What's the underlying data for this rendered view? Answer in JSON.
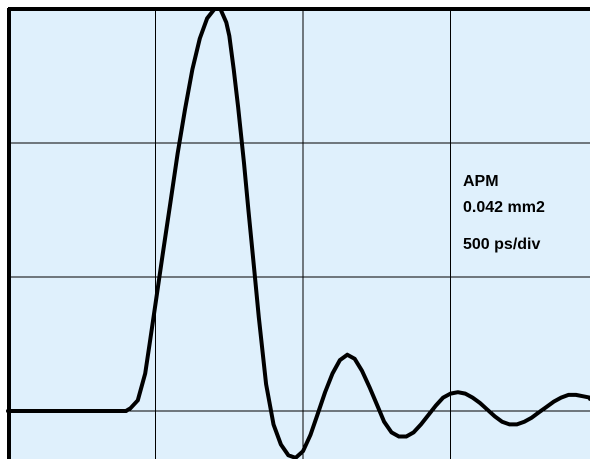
{
  "chart_data": {
    "type": "line",
    "title": "",
    "xlabel": "",
    "ylabel": "",
    "annotations": {
      "line1": "APM",
      "line2": "0.042 mm2",
      "line3": "500 ps/div"
    },
    "grid": true,
    "xlim": [
      0,
      4
    ],
    "ylim": [
      -0.25,
      3
    ],
    "x_unit_note": "divisions (500 ps/div)",
    "series": [
      {
        "x": [
          0.0,
          0.4,
          0.8,
          0.83,
          0.88,
          0.93,
          0.96,
          1.0,
          1.05,
          1.1,
          1.15,
          1.2,
          1.25,
          1.3,
          1.35,
          1.4,
          1.44,
          1.48,
          1.5,
          1.53,
          1.56,
          1.6,
          1.63,
          1.67,
          1.7,
          1.75,
          1.8,
          1.85,
          1.9,
          1.95,
          2.0,
          2.05,
          2.1,
          2.15,
          2.2,
          2.25,
          2.3,
          2.35,
          2.4,
          2.45,
          2.5,
          2.55,
          2.6,
          2.65,
          2.7,
          2.75,
          2.8,
          2.85,
          2.9,
          2.95,
          3.0,
          3.05,
          3.1,
          3.15,
          3.2,
          3.25,
          3.3,
          3.35,
          3.4,
          3.45,
          3.5,
          3.55,
          3.6,
          3.65,
          3.7,
          3.75,
          3.8,
          3.85,
          3.9,
          3.95,
          4.0
        ],
        "y": [
          0.0,
          0.0,
          0.0,
          0.02,
          0.08,
          0.28,
          0.5,
          0.8,
          1.18,
          1.55,
          1.92,
          2.25,
          2.55,
          2.78,
          2.93,
          3.0,
          3.0,
          2.9,
          2.8,
          2.55,
          2.27,
          1.85,
          1.5,
          1.05,
          0.7,
          0.2,
          -0.1,
          -0.25,
          -0.33,
          -0.35,
          -0.3,
          -0.18,
          -0.02,
          0.14,
          0.28,
          0.38,
          0.42,
          0.39,
          0.3,
          0.18,
          0.05,
          -0.08,
          -0.16,
          -0.19,
          -0.19,
          -0.16,
          -0.1,
          -0.03,
          0.04,
          0.1,
          0.13,
          0.14,
          0.13,
          0.1,
          0.06,
          0.01,
          -0.04,
          -0.08,
          -0.1,
          -0.1,
          -0.08,
          -0.05,
          -0.01,
          0.03,
          0.07,
          0.1,
          0.12,
          0.12,
          0.11,
          0.1,
          0.09
        ]
      }
    ]
  },
  "colors": {
    "background": "#dff0fc",
    "grid": "#000000",
    "trace": "#000000",
    "frame": "#000000"
  }
}
